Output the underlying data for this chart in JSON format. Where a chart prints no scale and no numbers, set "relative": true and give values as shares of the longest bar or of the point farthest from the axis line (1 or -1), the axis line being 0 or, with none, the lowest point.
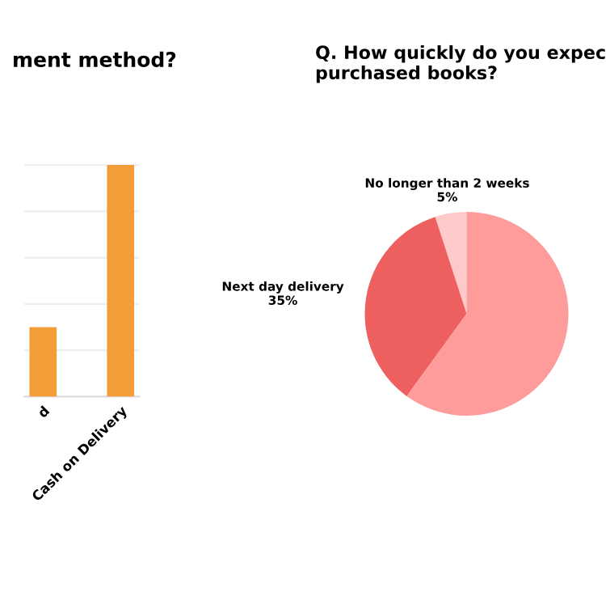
{
  "chart_data": [
    {
      "type": "bar",
      "title": "ment method?",
      "categories": [
        "d",
        null,
        "Cash on Delivery"
      ],
      "values": [
        0.3,
        0,
        1
      ],
      "color": "#f29d38",
      "relative": true,
      "grid": "y"
    },
    {
      "type": "pie",
      "title": "Q. How quickly do you expec\npurchased books?",
      "categories": [
        "No longer than 2 weeks",
        "Next day delivery",
        null
      ],
      "values": [
        5,
        35,
        60
      ],
      "colors": [
        "#fdc9c9",
        "#ee5f5f",
        "#fe9b9b"
      ],
      "value_labels": [
        "5%",
        "35%",
        null
      ]
    }
  ]
}
